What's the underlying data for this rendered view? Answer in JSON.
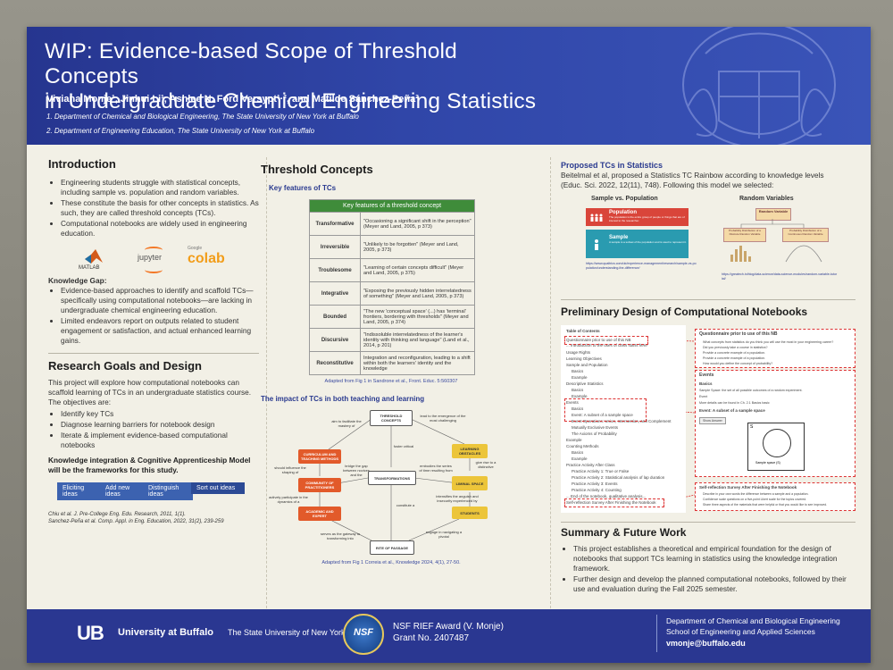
{
  "header": {
    "title_line1": "WIP: Evidence-based Scope of Threshold Concepts",
    "title_line2": "in Undergraduate Chemical Engineering Statistics",
    "authors": "Viviana Monje¹,  Jinhui Li¹, Ashlee N. Ford Versypt¹·², and Matilde Sánchez-Peña²",
    "aff1": "1.  Department of Chemical and Biological Engineering, The State University of New York at Buffalo",
    "aff2": "2.  Department of Engineering Education, The State University of New York at Buffalo"
  },
  "intro": {
    "title": "Introduction",
    "b1": "Engineering students struggle with statistical concepts, including sample vs. population and random variables.",
    "b2": "These constitute the basis for other concepts in statistics. As such, they are called threshold concepts (TCs).",
    "b3": "Computational notebooks are widely used in engineering education.",
    "logo_matlab": "MATLAB",
    "logo_jupyter": "jupyter",
    "logo_google": "Google",
    "logo_colab": "colab",
    "gap_title": "Knowledge Gap:",
    "g1": "Evidence-based approaches to identify and scaffold TCs—specifically using computational notebooks—are lacking in undergraduate chemical engineering education.",
    "g2": "Limited endeavors report on outputs related to student engagement or satisfaction, and actual enhanced learning gains."
  },
  "goals": {
    "title": "Research Goals and Design",
    "p": "This project will explore how computational notebooks can scaffold learning of TCs in an undergraduate statistics course. The objectives are:",
    "o1": "Identify key TCs",
    "o2": "Diagnose learning barriers for notebook design",
    "o3": "Iterate & implement evidence-based computational notebooks",
    "framework": "Knowledge integration & Cognitive Apprenticeship Model will be the frameworks for this study.",
    "chips": [
      "Eliciting ideas",
      "Add new ideas",
      "Distinguish ideas",
      "Sort out ideas"
    ],
    "ref1": "Chiu et al. J. Pre-College Eng. Edu. Research, 2011, 1(1).",
    "ref2": "Sanchez-Peña et al. Comp. Appl. in Eng. Education, 2022, 31(2), 239-259"
  },
  "threshold": {
    "title": "Threshold Concepts",
    "subtitle": "Key features of TCs",
    "table_header": "Key features of a threshold concept",
    "rows": [
      {
        "k": "Transformative",
        "v": "\"Occasioning a significant shift in the perception\" (Meyer and Land, 2005, p 373)"
      },
      {
        "k": "Irreversible",
        "v": "\"Unlikely to be forgotten\" (Meyer and Land, 2005, p 373)"
      },
      {
        "k": "Troublesome",
        "v": "\"Learning of certain concepts difficult\" (Meyer and Land, 2005, p 375)"
      },
      {
        "k": "Integrative",
        "v": "\"Exposing the previously hidden interrelatedness of something\" (Meyer and Land, 2005, p 373)"
      },
      {
        "k": "Bounded",
        "v": "\"The new 'conceptual space' (...) has 'terminal' frontiers, bordering with thresholds\" (Meyer and Land, 2005, p 374)"
      },
      {
        "k": "Discursive",
        "v": "\"Indissoluble interrelatedness of the learner's identity with thinking and language\" (Land et al., 2014, p 201)"
      },
      {
        "k": "Reconstitutive",
        "v": "Integration and reconfiguration, leading to a shift within both the learners' identity and the knowledge"
      }
    ],
    "caption1": "Adapted from Fig 1 in Sandrone et al., Front. Educ. 5:560307",
    "impact_title": "The impact of TCs in both teaching and learning",
    "nodes": {
      "threshold": "THRESHOLD CONCEPTS",
      "curriculum": "CURRICULUM AND TEACHING METHODS",
      "community": "COMMUNITY OF PRACTITIONERS",
      "academic": "ACADEMIC AND EXPERT",
      "transform": "TRANSFORMATIONS",
      "learning": "LEARNING OBSTACLES",
      "liminal": "LIMINAL SPACE",
      "students": "STUDENTS",
      "rites": "RITE OF PASSAGE"
    },
    "edges": {
      "e1": "aim to facilitate the mastery of",
      "e2": "lead to the emergence of the most challenging",
      "e3": "foster critical",
      "e4": "should influence the shaping of",
      "e5": "bridge the gap between novices and the",
      "e6": "embodies the series of time resulting from",
      "e7": "give rise to a distinctive",
      "e8": "actively participate in the dynamics of a",
      "e9": "constitute a",
      "e10": "intensifies the anguish and insecurity experienced by",
      "e11": "serves as the gateway to transforming into",
      "e12": "engage in navigating a pivotal"
    },
    "caption2": "Adapted from Fig 1 Correia et al., Knowledge 2024, 4(1), 27-50."
  },
  "proposed": {
    "title": "Proposed TCs in Statistics",
    "p1": "Beitelmal et al, proposed a Statistics TC Rainbow according to knowledge levels",
    "p2": "(Educ. Sci. 2022, 12(11), 748). Following this model we selected:",
    "sample_title": "Sample vs. Population",
    "pop_label": "Population",
    "pop_text": "The population is the entire group of people or things that are of interest to the researcher.",
    "sample_label": "Sample",
    "sample_text": "A sample is a subset of the population and is used to represent it.",
    "link1": "https://www.qualtrics.com/uk/experience-management/research/sample-vs-population/understanding-the-difference/",
    "rv_title": "Random Variables",
    "rv_top": "Random Variable",
    "rv_left": "Probability Distribution of a Discrete Random Variable",
    "rv_right": "Probability Distribution of a Continuous Random Variable",
    "link2": "https://greatech.in/blog/data-science/data-science-modules/random-variable-tutorial/"
  },
  "design": {
    "title": "Preliminary Design of Computational Notebooks",
    "toc": [
      "Table of Contents",
      "Questionnaire prior to use of this NB",
      "... Introduction to the uses of class starts here",
      "Usage Rights",
      "Learning Objectives",
      "Sample and Population",
      "Basics",
      "Example",
      "Descriptive Statistics",
      "Basics",
      "Example",
      "Events",
      "Basics",
      "Event: A subset of a sample space",
      "Event Operations: Union, Intersection, and Complement",
      "Mutually Exclusive Events",
      "The Axioms of Probability",
      "Example",
      "Counting Methods",
      "Basics",
      "Example",
      "Practice Activity After Class",
      "Practice Activity 1: True or False",
      "Practice Activity 2: Statistical analysis of lap duration",
      "Practice Activity 3: Events",
      "Practice Activity 4: Counting",
      "... End of the notebook, qualitative analysis...",
      "Self-reflection Survey After Finishing the Notebook"
    ],
    "q_title": "Questionnaire prior to use of this NB",
    "q_items": [
      "What concepts from statistics do you think you will use the most in your engineering career?",
      "Did you previously take a course in statistics?",
      "Provide a concrete example of a population.",
      "Provide a concrete example of a population.",
      "How would you define the concept of probability?"
    ],
    "events_title": "Events",
    "events_basics": "Basics",
    "events_text": "Sample Space: the set of all possible outcomes of a random experiment.",
    "events_event": "Event",
    "events_more": "More details can be found in Ch. 2.1 Basics basic",
    "events_sub": "Event: A subset of a sample space",
    "events_btn": "Show Answer",
    "venn_s": "S",
    "venn_caption": "Sample space (S)",
    "survey_title": "Self-reflection Survey After Finishing the Notebook",
    "survey_items": [
      "Describe in your own words the difference between a sample and a population.",
      "Confidence scale questions on a five-point Likert scale for the topics covered.",
      "Share three aspects of the materials that were helpful or that you would like to see improved."
    ]
  },
  "summary": {
    "title": "Summary & Future Work",
    "b1": "This project establishes a theoretical and empirical foundation for the design of notebooks that support TCs learning in statistics using the knowledge integration framework.",
    "b2": "Further design and develop the planned computational notebooks, followed by their use and evaluation during the Fall 2025 semester."
  },
  "footer": {
    "ub": "UB",
    "univ": "University at Buffalo",
    "suny": "The State University of New York",
    "nsf": "NSF",
    "award": "NSF RIEF Award (V. Monje)",
    "grant": "Grant No. 2407487",
    "dept1": "Department of Chemical and Biological Engineering",
    "dept2": "School of Engineering and Applied Sciences",
    "email": "vmonje@buffalo.edu"
  },
  "colors": {
    "header": "#2f44a6",
    "chip": "#3c62b0",
    "red": "#d9453a",
    "teal": "#2a9bb0",
    "yellow": "#e8c229"
  }
}
